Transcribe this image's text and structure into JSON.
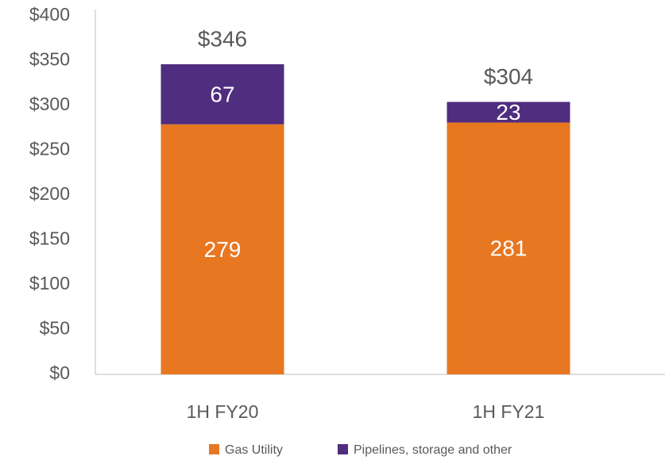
{
  "chart_data": {
    "type": "stacked_bar",
    "categories": [
      "1H FY20",
      "1H FY21"
    ],
    "series": [
      {
        "name": "Gas Utility",
        "color": "#E87722",
        "values": [
          279,
          281
        ]
      },
      {
        "name": "Pipelines, storage and other",
        "color": "#4F2D7F",
        "values": [
          67,
          23
        ]
      }
    ],
    "totals": [
      346,
      304
    ],
    "total_labels": [
      "$346",
      "$304"
    ],
    "ylim": [
      0,
      400
    ],
    "yticks": [
      {
        "value": 0,
        "label": "$0"
      },
      {
        "value": 50,
        "label": "$50"
      },
      {
        "value": 100,
        "label": "$100"
      },
      {
        "value": 150,
        "label": "$150"
      },
      {
        "value": 200,
        "label": "$200"
      },
      {
        "value": 250,
        "label": "$250"
      },
      {
        "value": 300,
        "label": "$300"
      },
      {
        "value": 350,
        "label": "$350"
      },
      {
        "value": 400,
        "label": "$400"
      }
    ],
    "grid": false,
    "legend": "bottom"
  }
}
